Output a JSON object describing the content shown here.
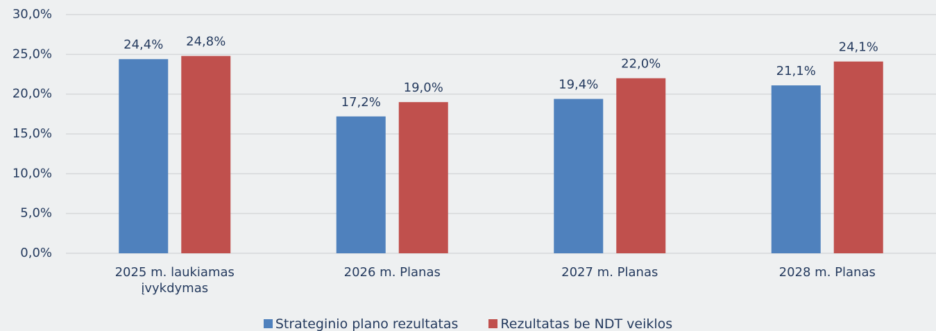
{
  "chart_data": {
    "type": "bar",
    "categories": [
      "2025 m.  laukiamas įvykdymas",
      "2026 m. Planas",
      "2027 m. Planas",
      "2028 m. Planas"
    ],
    "series": [
      {
        "name": "Strateginio plano rezultatas",
        "color": "#4f81bd",
        "values": [
          24.4,
          17.2,
          19.4,
          21.1
        ],
        "value_labels": [
          "24,4%",
          "17,2%",
          "19,4%",
          "21,1%"
        ]
      },
      {
        "name": "Rezultatas be NDT veiklos",
        "color": "#c0504d",
        "values": [
          24.8,
          19.0,
          22.0,
          24.1
        ],
        "value_labels": [
          "24,8%",
          "19,0%",
          "22,0%",
          "24,1%"
        ]
      }
    ],
    "ylim": [
      0,
      30
    ],
    "yticks": [
      {
        "value": 0,
        "label": "0,0%"
      },
      {
        "value": 5,
        "label": "5,0%"
      },
      {
        "value": 10,
        "label": "10,0%"
      },
      {
        "value": 15,
        "label": "15,0%"
      },
      {
        "value": 20,
        "label": "20,0%"
      },
      {
        "value": 25,
        "label": "25,0%"
      },
      {
        "value": 30,
        "label": "30,0%"
      }
    ],
    "grid": true,
    "legend": "bottom"
  }
}
